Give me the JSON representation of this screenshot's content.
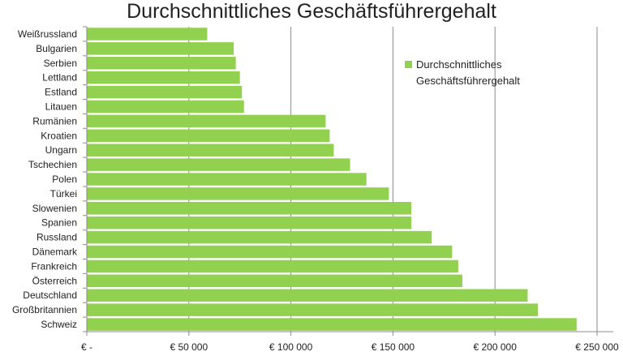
{
  "chart_data": {
    "type": "bar",
    "orientation": "horizontal",
    "title": "Durchschnittliches Geschäftsführergehalt",
    "xlabel": "",
    "ylabel": "",
    "categories": [
      "Weißrussland",
      "Bulgarien",
      "Serbien",
      "Lettland",
      "Estland",
      "Litauen",
      "Rumänien",
      "Kroatien",
      "Ungarn",
      "Tschechien",
      "Polen",
      "Türkei",
      "Slowenien",
      "Spanien",
      "Russland",
      "Dänemark",
      "Frankreich",
      "Österreich",
      "Deutschland",
      "Großbritannien",
      "Schweiz"
    ],
    "series": [
      {
        "name": "Durchschnittliches Geschäftsführergehalt",
        "color": "#92d050",
        "values": [
          59000,
          72000,
          73000,
          75000,
          76000,
          77000,
          117000,
          119000,
          121000,
          129000,
          137000,
          148000,
          159000,
          159000,
          169000,
          179000,
          182000,
          184000,
          216000,
          221000,
          240000
        ]
      }
    ],
    "xlim": [
      0,
      250000
    ],
    "xticks": [
      0,
      50000,
      100000,
      150000,
      200000,
      250000
    ],
    "tick_labels": [
      "€ -",
      "€ 50 000",
      "€ 100 000",
      "€ 150 000",
      "€ 200 000",
      "€ 250 000"
    ],
    "legend": {
      "position": "top-right",
      "lines": [
        "Durchschnittliches",
        "Geschäftsführergehalt"
      ]
    },
    "grid": "vertical"
  }
}
